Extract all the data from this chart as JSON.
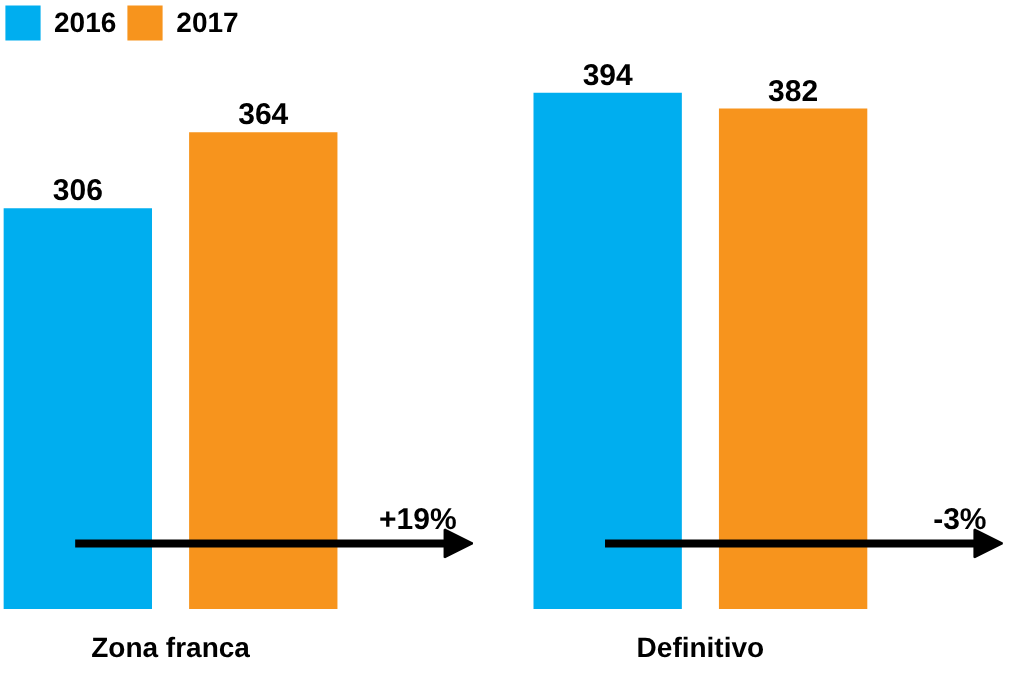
{
  "chart_data": {
    "type": "bar",
    "categories": [
      "Zona franca",
      "Definitivo"
    ],
    "series": [
      {
        "name": "2016",
        "color": "#00aeef",
        "values": [
          306,
          394
        ]
      },
      {
        "name": "2017",
        "color": "#f7941d",
        "values": [
          364,
          382
        ]
      }
    ],
    "data_labels": true,
    "legend": "top left",
    "grid": false,
    "annotations": [
      "+19%",
      "-3%"
    ]
  }
}
